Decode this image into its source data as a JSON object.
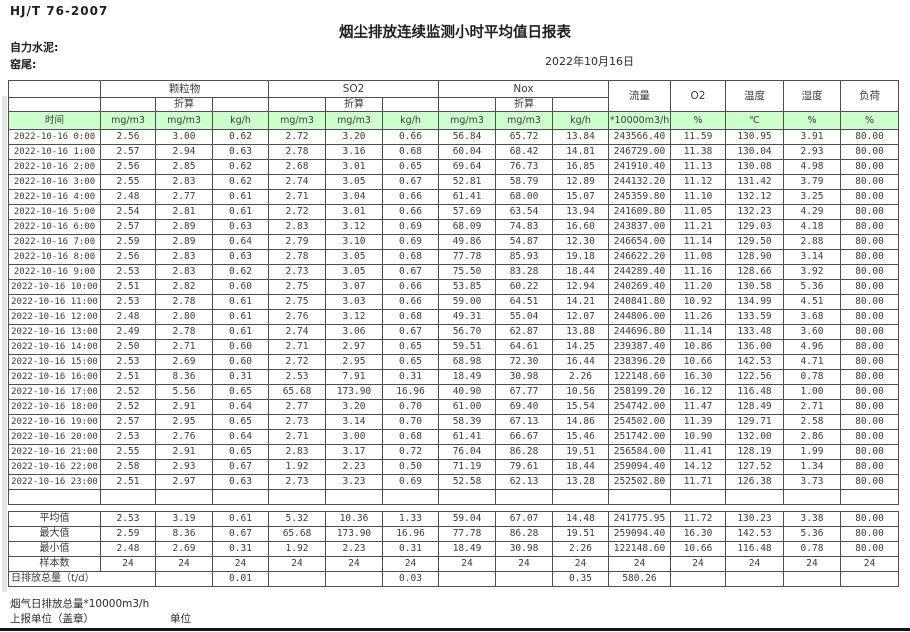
{
  "page": {
    "standard": "HJ/T  76-2007",
    "title": "烟尘排放连续监测小时平均值日报表",
    "company": "自力水泥:",
    "location": "窑尾:",
    "date": "2022年10月16日"
  },
  "table": {
    "groups": {
      "pm": "颗粒物",
      "so2": "SO2",
      "nox": "Nox"
    },
    "converted_label": "折算",
    "single_headers": {
      "flow": "流量",
      "o2": "O2",
      "temp": "温度",
      "humidity": "湿度",
      "load": "负荷"
    },
    "units": {
      "time": "时间",
      "mg": "mg/m3",
      "kgh": "kg/h",
      "flow": "*10000m3/h",
      "pct": "%",
      "temp": "℃"
    },
    "rows": [
      [
        "2022-10-16 0:00",
        "2.56",
        "3.00",
        "0.62",
        "2.72",
        "3.20",
        "0.66",
        "56.84",
        "65.72",
        "13.84",
        "243566.40",
        "11.59",
        "130.95",
        "3.91",
        "80.00"
      ],
      [
        "2022-10-16 1:00",
        "2.57",
        "2.94",
        "0.63",
        "2.78",
        "3.16",
        "0.68",
        "60.04",
        "68.42",
        "14.81",
        "246729.00",
        "11.38",
        "130.04",
        "2.93",
        "80.00"
      ],
      [
        "2022-10-16 2:00",
        "2.56",
        "2.85",
        "0.62",
        "2.68",
        "3.01",
        "0.65",
        "69.64",
        "76.73",
        "16.85",
        "241910.40",
        "11.13",
        "130.08",
        "4.98",
        "80.00"
      ],
      [
        "2022-10-16 3:00",
        "2.55",
        "2.83",
        "0.62",
        "2.74",
        "3.05",
        "0.67",
        "52.81",
        "58.79",
        "12.89",
        "244132.20",
        "11.12",
        "131.42",
        "3.79",
        "80.00"
      ],
      [
        "2022-10-16 4:00",
        "2.48",
        "2.77",
        "0.61",
        "2.71",
        "3.04",
        "0.66",
        "61.41",
        "68.00",
        "15.07",
        "245359.80",
        "11.10",
        "132.12",
        "3.25",
        "80.00"
      ],
      [
        "2022-10-16 5:00",
        "2.54",
        "2.81",
        "0.61",
        "2.72",
        "3.01",
        "0.66",
        "57.69",
        "63.54",
        "13.94",
        "241609.80",
        "11.05",
        "132.23",
        "4.29",
        "80.00"
      ],
      [
        "2022-10-16 6:00",
        "2.57",
        "2.89",
        "0.63",
        "2.83",
        "3.12",
        "0.69",
        "68.09",
        "74.83",
        "16.60",
        "243837.00",
        "11.21",
        "129.03",
        "4.18",
        "80.00"
      ],
      [
        "2022-10-16 7:00",
        "2.59",
        "2.89",
        "0.64",
        "2.79",
        "3.10",
        "0.69",
        "49.86",
        "54.87",
        "12.30",
        "246654.00",
        "11.14",
        "129.50",
        "2.88",
        "80.00"
      ],
      [
        "2022-10-16 8:00",
        "2.56",
        "2.83",
        "0.63",
        "2.78",
        "3.05",
        "0.68",
        "77.78",
        "85.93",
        "19.18",
        "246622.20",
        "11.08",
        "128.90",
        "3.14",
        "80.00"
      ],
      [
        "2022-10-16 9:00",
        "2.53",
        "2.83",
        "0.62",
        "2.73",
        "3.05",
        "0.67",
        "75.50",
        "83.28",
        "18.44",
        "244289.40",
        "11.16",
        "128.66",
        "3.92",
        "80.00"
      ],
      [
        "2022-10-16 10:00",
        "2.51",
        "2.82",
        "0.60",
        "2.75",
        "3.07",
        "0.66",
        "53.85",
        "60.22",
        "12.94",
        "240269.40",
        "11.20",
        "130.58",
        "5.36",
        "80.00"
      ],
      [
        "2022-10-16 11:00",
        "2.53",
        "2.78",
        "0.61",
        "2.75",
        "3.03",
        "0.66",
        "59.00",
        "64.51",
        "14.21",
        "240841.80",
        "10.92",
        "134.99",
        "4.51",
        "80.00"
      ],
      [
        "2022-10-16 12:00",
        "2.48",
        "2.80",
        "0.61",
        "2.76",
        "3.12",
        "0.68",
        "49.31",
        "55.04",
        "12.07",
        "244806.00",
        "11.26",
        "133.59",
        "3.68",
        "80.00"
      ],
      [
        "2022-10-16 13:00",
        "2.49",
        "2.78",
        "0.61",
        "2.74",
        "3.06",
        "0.67",
        "56.70",
        "62.87",
        "13.88",
        "244696.80",
        "11.14",
        "133.48",
        "3.60",
        "80.00"
      ],
      [
        "2022-10-16 14:00",
        "2.50",
        "2.71",
        "0.60",
        "2.71",
        "2.97",
        "0.65",
        "59.51",
        "64.61",
        "14.25",
        "239387.40",
        "10.86",
        "136.00",
        "4.96",
        "80.00"
      ],
      [
        "2022-10-16 15:00",
        "2.53",
        "2.69",
        "0.60",
        "2.72",
        "2.95",
        "0.65",
        "68.98",
        "72.30",
        "16.44",
        "238396.20",
        "10.66",
        "142.53",
        "4.71",
        "80.00"
      ],
      [
        "2022-10-16 16:00",
        "2.51",
        "8.36",
        "0.31",
        "2.53",
        "7.91",
        "0.31",
        "18.49",
        "30.98",
        "2.26",
        "122148.60",
        "16.30",
        "122.56",
        "0.78",
        "80.00"
      ],
      [
        "2022-10-16 17:00",
        "2.52",
        "5.56",
        "0.65",
        "65.68",
        "173.90",
        "16.96",
        "40.90",
        "67.77",
        "10.56",
        "258199.20",
        "16.12",
        "116.48",
        "1.00",
        "80.00"
      ],
      [
        "2022-10-16 18:00",
        "2.52",
        "2.91",
        "0.64",
        "2.77",
        "3.20",
        "0.70",
        "61.00",
        "69.40",
        "15.54",
        "254742.00",
        "11.47",
        "128.49",
        "2.71",
        "80.00"
      ],
      [
        "2022-10-16 19:00",
        "2.57",
        "2.95",
        "0.65",
        "2.73",
        "3.14",
        "0.70",
        "58.39",
        "67.13",
        "14.86",
        "254502.00",
        "11.39",
        "129.71",
        "2.58",
        "80.00"
      ],
      [
        "2022-10-16 20:00",
        "2.53",
        "2.76",
        "0.64",
        "2.71",
        "3.00",
        "0.68",
        "61.41",
        "66.67",
        "15.46",
        "251742.00",
        "10.90",
        "132.00",
        "2.86",
        "80.00"
      ],
      [
        "2022-10-16 21:00",
        "2.55",
        "2.91",
        "0.65",
        "2.83",
        "3.17",
        "0.72",
        "76.04",
        "86.28",
        "19.51",
        "256584.00",
        "11.41",
        "128.19",
        "1.99",
        "80.00"
      ],
      [
        "2022-10-16 22:00",
        "2.58",
        "2.93",
        "0.67",
        "1.92",
        "2.23",
        "0.50",
        "71.19",
        "79.61",
        "18.44",
        "259094.40",
        "14.12",
        "127.52",
        "1.34",
        "80.00"
      ],
      [
        "2022-10-16 23:00",
        "2.51",
        "2.97",
        "0.63",
        "2.73",
        "3.23",
        "0.69",
        "52.58",
        "62.13",
        "13.28",
        "252502.80",
        "11.71",
        "126.38",
        "3.73",
        "80.00"
      ]
    ],
    "summary": {
      "rows": [
        {
          "label": "平均值",
          "values": [
            "2.53",
            "3.19",
            "0.61",
            "5.32",
            "10.36",
            "1.33",
            "59.04",
            "67.07",
            "14.48",
            "241775.95",
            "11.72",
            "130.23",
            "3.38",
            "80.00"
          ]
        },
        {
          "label": "最大值",
          "values": [
            "2.59",
            "8.36",
            "0.67",
            "65.68",
            "173.90",
            "16.96",
            "77.78",
            "86.28",
            "19.51",
            "259094.40",
            "16.30",
            "142.53",
            "5.36",
            "80.00"
          ]
        },
        {
          "label": "最小值",
          "values": [
            "2.48",
            "2.69",
            "0.31",
            "1.92",
            "2.23",
            "0.31",
            "18.49",
            "30.98",
            "2.26",
            "122148.60",
            "10.66",
            "116.48",
            "0.78",
            "80.00"
          ]
        },
        {
          "label": "样本数",
          "values": [
            "24",
            "24",
            "24",
            "24",
            "24",
            "24",
            "24",
            "24",
            "24",
            "24",
            "24",
            "24",
            "24",
            "24"
          ]
        }
      ],
      "daily_total": {
        "label": "日排放总量（t/d）",
        "cells": [
          "",
          "0.01",
          "",
          "",
          "0.03",
          "",
          "",
          "0.35",
          "580.26",
          "",
          "",
          "",
          ""
        ]
      }
    }
  },
  "footer": {
    "flue_total": "烟气日排放总量*10000m3/h",
    "report_unit": "上报单位（盖章）",
    "unit": "单位"
  }
}
